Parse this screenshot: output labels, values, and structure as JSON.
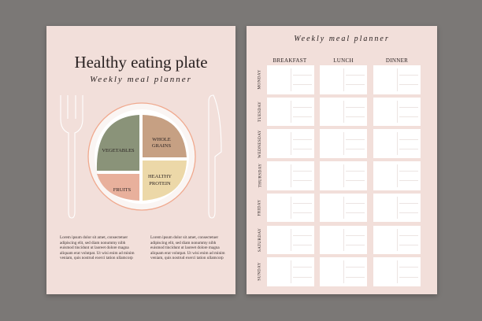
{
  "plate_page": {
    "title": "Healthy eating plate",
    "subtitle": "Weekly meal planner",
    "segments": {
      "vegetables": "VEGETABLES",
      "whole_grains_1": "WHOLE",
      "whole_grains_2": "GRAINS",
      "healthy_protein_1": "HEALTHY",
      "healthy_protein_2": "PROTEIN",
      "fruits": "FRUITS"
    },
    "colors": {
      "vegetables": "#8a9379",
      "whole_grains": "#c6a083",
      "healthy_protein": "#ecd8a8",
      "fruits": "#e8b09c"
    },
    "paragraph_1": "Lorem ipsum dolor sit amet, consectetuer adipiscing elit, sed diam nonummy nibh euismod tincidunt ut laoreet dolore magna aliquam erat volutpat. Ut wisi enim ad minim veniam, quis nostrud exerci tation ullamcorp",
    "paragraph_2": "Lorem ipsum dolor sit amet, consectetuer adipiscing elit, sed diam nonummy nibh euismod tincidunt ut laoreet dolore magna aliquam erat volutpat. Ut wisi enim ad minim veniam, quis nostrud exerci tation ullamcorp"
  },
  "planner_page": {
    "title": "Weekly meal planner",
    "columns": [
      "BREAKFAST",
      "LUNCH",
      "DINNER"
    ],
    "days": [
      "MONDAY",
      "TUESDAY",
      "WEDNESDAY",
      "THURSDAY",
      "FRIDAY",
      "SATURDAY",
      "SUNDAY"
    ]
  }
}
